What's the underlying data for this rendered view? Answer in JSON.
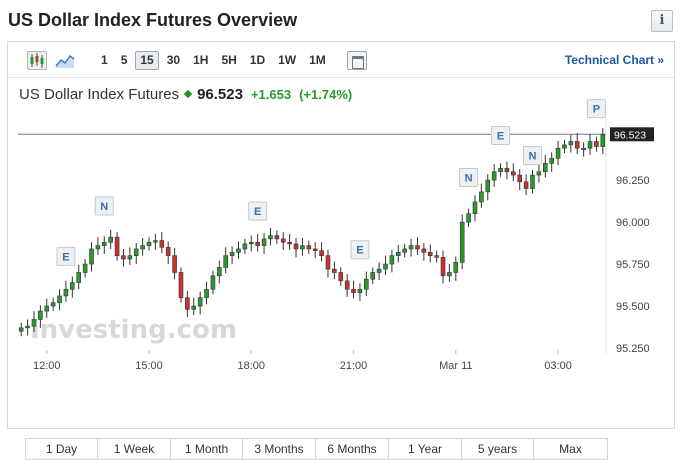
{
  "header": {
    "title": "US Dollar Index Futures Overview",
    "info_icon": "i"
  },
  "toolbar": {
    "candle_icon": "candlestick-icon",
    "area_icon": "area-chart-icon",
    "intervals": [
      "1",
      "5",
      "15",
      "30",
      "1H",
      "5H",
      "1D",
      "1W",
      "1M"
    ],
    "active_interval": "15",
    "settings_icon": "chart-settings-icon",
    "technical_chart": "Technical Chart »"
  },
  "quote": {
    "name": "US Dollar Index Futures",
    "price": "96.523",
    "change": "+1.653",
    "change_pct": "(+1.74%)",
    "up_color": "#2a9a2a",
    "down_color": "#c83232"
  },
  "ranges": [
    "1 Day",
    "1 Week",
    "1 Month",
    "3 Months",
    "6 Months",
    "1 Year",
    "5 years",
    "Max"
  ],
  "chart_data": {
    "type": "candlestick",
    "watermark": "Investing.com",
    "current_price_label": "96.523",
    "current_price": 96.523,
    "y_ticks": [
      "96.250",
      "96.000",
      "95.750",
      "95.500",
      "95.250"
    ],
    "y_tick_values": [
      96.25,
      96.0,
      95.75,
      95.5,
      95.25
    ],
    "ylim": [
      95.25,
      96.62
    ],
    "x_ticks": [
      "12:00",
      "15:00",
      "18:00",
      "21:00",
      "Mar 11",
      "03:00"
    ],
    "x_tick_index": [
      4,
      20,
      36,
      52,
      68,
      84
    ],
    "event_markers": [
      {
        "label": "E",
        "index": 7,
        "price": 95.73
      },
      {
        "label": "N",
        "index": 13,
        "price": 96.03
      },
      {
        "label": "E",
        "index": 37,
        "price": 96.0
      },
      {
        "label": "E",
        "index": 53,
        "price": 95.77
      },
      {
        "label": "N",
        "index": 70,
        "price": 96.2
      },
      {
        "label": "E",
        "index": 75,
        "price": 96.45
      },
      {
        "label": "N",
        "index": 80,
        "price": 96.33
      },
      {
        "label": "P",
        "index": 90,
        "price": 96.61
      }
    ],
    "closes": [
      95.37,
      95.38,
      95.42,
      95.47,
      95.5,
      95.52,
      95.56,
      95.6,
      95.64,
      95.7,
      95.75,
      95.84,
      95.86,
      95.88,
      95.91,
      95.8,
      95.78,
      95.8,
      95.84,
      95.86,
      95.88,
      95.89,
      95.85,
      95.8,
      95.7,
      95.55,
      95.48,
      95.5,
      95.55,
      95.6,
      95.68,
      95.73,
      95.8,
      95.82,
      95.84,
      95.87,
      95.88,
      95.86,
      95.9,
      95.92,
      95.9,
      95.88,
      95.87,
      95.84,
      95.86,
      95.84,
      95.83,
      95.8,
      95.72,
      95.7,
      95.65,
      95.6,
      95.58,
      95.6,
      95.66,
      95.7,
      95.72,
      95.75,
      95.8,
      95.82,
      95.84,
      95.86,
      95.84,
      95.82,
      95.8,
      95.79,
      95.68,
      95.7,
      95.76,
      96.0,
      96.05,
      96.12,
      96.18,
      96.25,
      96.3,
      96.32,
      96.3,
      96.28,
      96.24,
      96.2,
      96.28,
      96.3,
      96.35,
      96.38,
      96.44,
      96.46,
      96.48,
      96.44,
      96.44,
      96.48,
      96.45,
      96.52
    ]
  }
}
